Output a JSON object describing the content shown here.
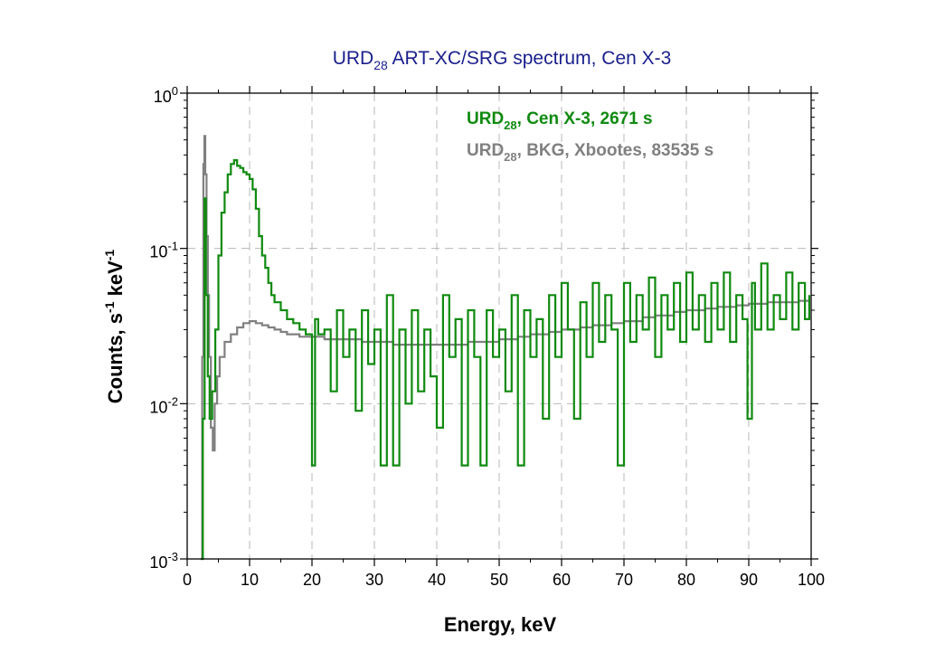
{
  "colors": {
    "source": "#0f8a0f",
    "background": "#808080",
    "title": "#1a1f8c"
  },
  "chart_data": {
    "type": "line",
    "title": {
      "main": "URD",
      "sub": "28",
      "rest": " ART-XC/SRG spectrum, Cen X-3"
    },
    "xlabel": "Energy, keV",
    "ylabel": {
      "main": "Counts, s",
      "sup1": "-1",
      "mid": " keV",
      "sup2": "-1"
    },
    "xlim": [
      0,
      100
    ],
    "ylim": [
      0.001,
      1
    ],
    "yscale": "log",
    "grid": true,
    "legend_position": "top-right",
    "x_ticks": [
      "0",
      "10",
      "20",
      "30",
      "40",
      "50",
      "60",
      "70",
      "80",
      "90",
      "100"
    ],
    "y_ticks": [
      {
        "base": "10",
        "exp": "0"
      },
      {
        "base": "10",
        "exp": "-1"
      },
      {
        "base": "10",
        "exp": "-2"
      },
      {
        "base": "10",
        "exp": "-3"
      }
    ],
    "series": [
      {
        "name": "URD28, Cen X-3, 2671 s",
        "legend": {
          "main": "URD",
          "sub": "28",
          "rest": ", Cen X-3, 2671 s"
        },
        "color": "#0f8a0f",
        "points": [
          [
            2.2,
            0.001
          ],
          [
            2.5,
            0.008
          ],
          [
            2.8,
            0.21
          ],
          [
            3.0,
            0.05
          ],
          [
            3.3,
            0.015
          ],
          [
            3.6,
            0.008
          ],
          [
            4.0,
            0.012
          ],
          [
            4.5,
            0.03
          ],
          [
            5.0,
            0.09
          ],
          [
            5.5,
            0.17
          ],
          [
            6.0,
            0.23
          ],
          [
            6.5,
            0.3
          ],
          [
            7.0,
            0.35
          ],
          [
            7.5,
            0.37
          ],
          [
            8.0,
            0.34
          ],
          [
            8.5,
            0.33
          ],
          [
            9.0,
            0.31
          ],
          [
            9.5,
            0.3
          ],
          [
            10.0,
            0.28
          ],
          [
            10.5,
            0.24
          ],
          [
            11.0,
            0.18
          ],
          [
            11.5,
            0.12
          ],
          [
            12.0,
            0.09
          ],
          [
            12.5,
            0.075
          ],
          [
            13.0,
            0.06
          ],
          [
            13.5,
            0.05
          ],
          [
            14.0,
            0.045
          ],
          [
            15.0,
            0.04
          ],
          [
            16.0,
            0.035
          ],
          [
            17.0,
            0.033
          ],
          [
            18.0,
            0.03
          ],
          [
            19.0,
            0.028
          ],
          [
            20.0,
            0.004
          ],
          [
            20.5,
            0.035
          ],
          [
            21.0,
            0.028
          ],
          [
            22.0,
            0.03
          ],
          [
            23.0,
            0.012
          ],
          [
            24.0,
            0.04
          ],
          [
            25.0,
            0.02
          ],
          [
            26.0,
            0.03
          ],
          [
            27.0,
            0.009
          ],
          [
            28.0,
            0.04
          ],
          [
            29.0,
            0.018
          ],
          [
            30.0,
            0.03
          ],
          [
            31.0,
            0.004
          ],
          [
            32.0,
            0.05
          ],
          [
            33.0,
            0.004
          ],
          [
            34.0,
            0.03
          ],
          [
            35.0,
            0.01
          ],
          [
            36.0,
            0.04
          ],
          [
            37.0,
            0.012
          ],
          [
            38.0,
            0.03
          ],
          [
            39.0,
            0.015
          ],
          [
            40.0,
            0.007
          ],
          [
            41.0,
            0.05
          ],
          [
            42.0,
            0.02
          ],
          [
            43.0,
            0.035
          ],
          [
            44.0,
            0.004
          ],
          [
            45.0,
            0.04
          ],
          [
            46.0,
            0.02
          ],
          [
            47.0,
            0.004
          ],
          [
            48.0,
            0.04
          ],
          [
            49.0,
            0.02
          ],
          [
            50.0,
            0.03
          ],
          [
            51.0,
            0.012
          ],
          [
            52.0,
            0.05
          ],
          [
            53.0,
            0.004
          ],
          [
            54.0,
            0.04
          ],
          [
            55.0,
            0.02
          ],
          [
            56.0,
            0.035
          ],
          [
            57.0,
            0.008
          ],
          [
            58.0,
            0.05
          ],
          [
            59.0,
            0.02
          ],
          [
            60.0,
            0.06
          ],
          [
            61.0,
            0.03
          ],
          [
            62.0,
            0.008
          ],
          [
            63.0,
            0.045
          ],
          [
            64.0,
            0.02
          ],
          [
            65.0,
            0.06
          ],
          [
            66.0,
            0.025
          ],
          [
            67.0,
            0.05
          ],
          [
            68.0,
            0.03
          ],
          [
            69.0,
            0.004
          ],
          [
            70.0,
            0.06
          ],
          [
            71.0,
            0.025
          ],
          [
            72.0,
            0.05
          ],
          [
            73.0,
            0.03
          ],
          [
            74.0,
            0.065
          ],
          [
            75.0,
            0.02
          ],
          [
            76.0,
            0.05
          ],
          [
            77.0,
            0.03
          ],
          [
            78.0,
            0.06
          ],
          [
            79.0,
            0.025
          ],
          [
            80.0,
            0.07
          ],
          [
            81.0,
            0.03
          ],
          [
            82.0,
            0.05
          ],
          [
            83.0,
            0.025
          ],
          [
            84.0,
            0.06
          ],
          [
            85.0,
            0.03
          ],
          [
            86.0,
            0.07
          ],
          [
            87.0,
            0.025
          ],
          [
            88.0,
            0.05
          ],
          [
            89.0,
            0.035
          ],
          [
            89.8,
            0.008
          ],
          [
            90.5,
            0.06
          ],
          [
            91.0,
            0.03
          ],
          [
            92.0,
            0.08
          ],
          [
            93.0,
            0.03
          ],
          [
            94.0,
            0.05
          ],
          [
            95.0,
            0.035
          ],
          [
            96.0,
            0.07
          ],
          [
            97.0,
            0.03
          ],
          [
            98.0,
            0.06
          ],
          [
            99.0,
            0.035
          ],
          [
            99.7,
            0.05
          ]
        ]
      },
      {
        "name": "URD28, BKG, Xbootes, 83535 s",
        "legend": {
          "main": "URD",
          "sub": "28",
          "rest": ", BKG, Xbootes, 83535 s"
        },
        "color": "#808080",
        "points": [
          [
            2.2,
            0.001
          ],
          [
            2.4,
            0.02
          ],
          [
            2.6,
            0.35
          ],
          [
            2.75,
            0.53
          ],
          [
            2.9,
            0.3
          ],
          [
            3.1,
            0.12
          ],
          [
            3.3,
            0.05
          ],
          [
            3.5,
            0.02
          ],
          [
            3.8,
            0.007
          ],
          [
            4.1,
            0.005
          ],
          [
            4.4,
            0.01
          ],
          [
            4.8,
            0.015
          ],
          [
            5.2,
            0.02
          ],
          [
            6.0,
            0.025
          ],
          [
            7.0,
            0.028
          ],
          [
            8.0,
            0.031
          ],
          [
            9.0,
            0.033
          ],
          [
            10.0,
            0.034
          ],
          [
            11.0,
            0.033
          ],
          [
            12.0,
            0.032
          ],
          [
            13.0,
            0.031
          ],
          [
            14.0,
            0.03
          ],
          [
            15.0,
            0.029
          ],
          [
            16.0,
            0.028
          ],
          [
            18.0,
            0.027
          ],
          [
            20.0,
            0.027
          ],
          [
            22.0,
            0.026
          ],
          [
            25.0,
            0.026
          ],
          [
            28.0,
            0.025
          ],
          [
            30.0,
            0.025
          ],
          [
            33.0,
            0.024
          ],
          [
            35.0,
            0.024
          ],
          [
            38.0,
            0.024
          ],
          [
            40.0,
            0.024
          ],
          [
            43.0,
            0.024
          ],
          [
            45.0,
            0.025
          ],
          [
            48.0,
            0.025
          ],
          [
            50.0,
            0.026
          ],
          [
            53.0,
            0.027
          ],
          [
            55.0,
            0.028
          ],
          [
            58.0,
            0.029
          ],
          [
            60.0,
            0.03
          ],
          [
            63.0,
            0.031
          ],
          [
            65.0,
            0.032
          ],
          [
            68.0,
            0.033
          ],
          [
            70.0,
            0.034
          ],
          [
            73.0,
            0.036
          ],
          [
            75.0,
            0.037
          ],
          [
            78.0,
            0.039
          ],
          [
            80.0,
            0.04
          ],
          [
            83.0,
            0.041
          ],
          [
            85.0,
            0.042
          ],
          [
            88.0,
            0.043
          ],
          [
            90.0,
            0.044
          ],
          [
            93.0,
            0.045
          ],
          [
            95.0,
            0.045
          ],
          [
            98.0,
            0.046
          ],
          [
            99.7,
            0.046
          ]
        ]
      }
    ]
  }
}
